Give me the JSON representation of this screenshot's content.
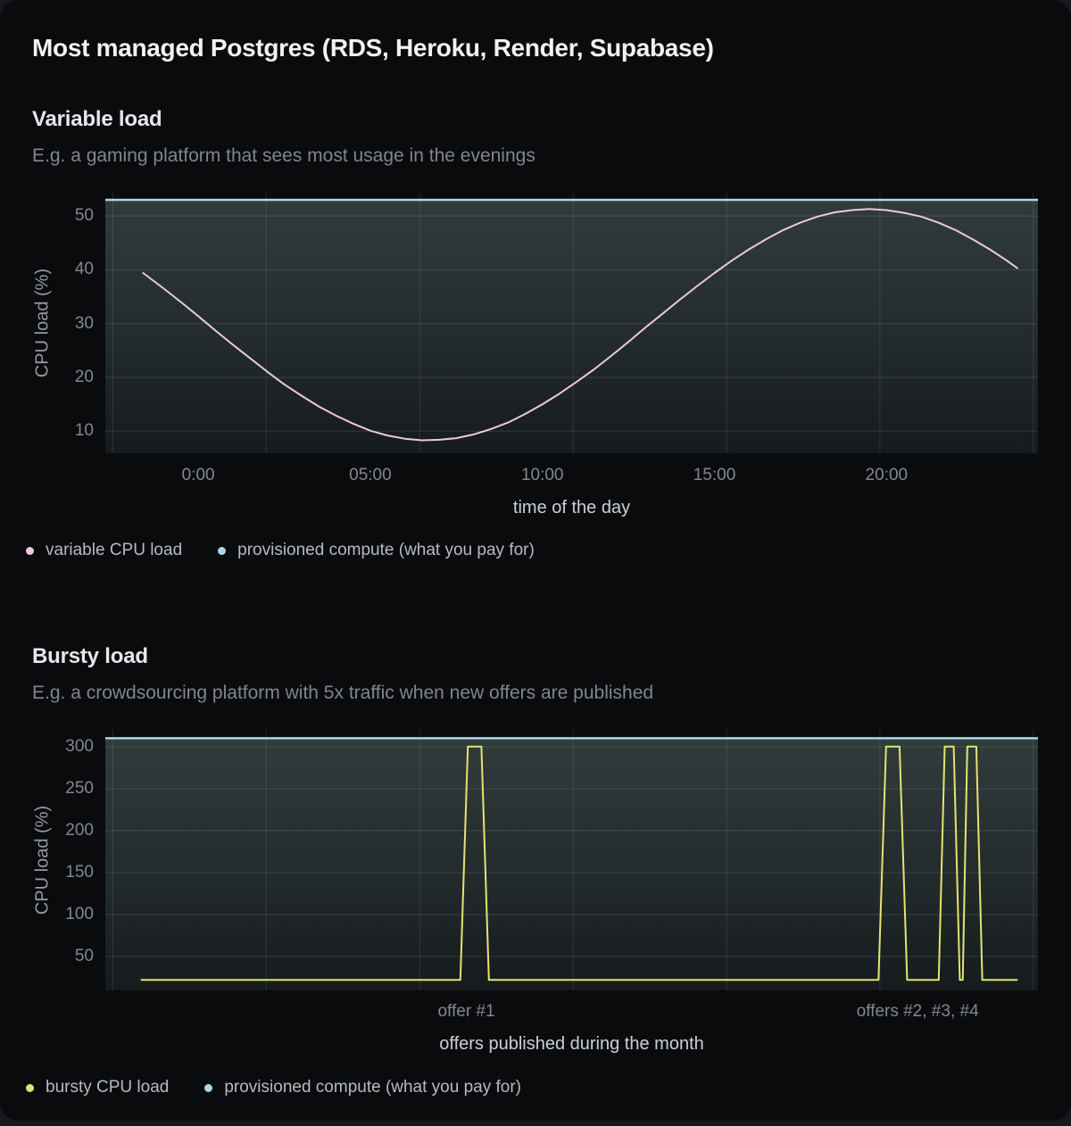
{
  "page": {
    "title": "Most managed Postgres (RDS, Heroku, Render, Supabase)",
    "background": "#171920",
    "card_background": "#0a0b0d"
  },
  "sections": [
    {
      "heading": "Variable load",
      "subtitle": "E.g. a gaming platform that sees most usage in the evenings"
    },
    {
      "heading": "Bursty load",
      "subtitle": "E.g. a crowdsourcing platform with 5x traffic when new offers are published"
    }
  ],
  "colors": {
    "variable_line": "#ecc9dc",
    "bursty_line": "#e6e273",
    "provisioned_line": "#a9d8e5",
    "grid_horizontal": "rgba(255,255,255,0.12)",
    "grid_vertical": "rgba(255,255,255,0.10)",
    "fill_top": "#303c3b",
    "fill_mid": "#232b2c",
    "fill_bottom": "#161b1d"
  },
  "chart_data": [
    {
      "type": "line",
      "section": "Variable load",
      "xlabel": "time of the day",
      "ylabel": "CPU load (%)",
      "xlim": [
        -2.7,
        24.4
      ],
      "ylim": [
        5.9,
        54.5
      ],
      "grid": true,
      "legend_position": "bottom-left",
      "x_ticks": [
        {
          "v": 0,
          "label": "0:00"
        },
        {
          "v": 5,
          "label": "05:00"
        },
        {
          "v": 10,
          "label": "10:00"
        },
        {
          "v": 15,
          "label": "15:00"
        },
        {
          "v": 20,
          "label": "20:00"
        }
      ],
      "y_ticks": [
        {
          "v": 10,
          "label": "10"
        },
        {
          "v": 20,
          "label": "20"
        },
        {
          "v": 30,
          "label": "30"
        },
        {
          "v": 40,
          "label": "40"
        },
        {
          "v": 50,
          "label": "50"
        }
      ],
      "series": [
        {
          "name": "variable CPU load",
          "kind": "line",
          "color": "#ecc9dc",
          "points": [
            [
              -1.6,
              39.4
            ],
            [
              -1,
              36.5
            ],
            [
              -0.5,
              34
            ],
            [
              0,
              31.4
            ],
            [
              0.5,
              28.7
            ],
            [
              1,
              26.1
            ],
            [
              1.5,
              23.6
            ],
            [
              2,
              21.1
            ],
            [
              2.5,
              18.7
            ],
            [
              3,
              16.6
            ],
            [
              3.5,
              14.6
            ],
            [
              4,
              12.9
            ],
            [
              4.5,
              11.4
            ],
            [
              5,
              10.1
            ],
            [
              5.5,
              9.2
            ],
            [
              6,
              8.6
            ],
            [
              6.5,
              8.3
            ],
            [
              7,
              8.4
            ],
            [
              7.5,
              8.7
            ],
            [
              8,
              9.4
            ],
            [
              8.5,
              10.4
            ],
            [
              9,
              11.6
            ],
            [
              9.5,
              13.2
            ],
            [
              10,
              15
            ],
            [
              10.5,
              17
            ],
            [
              11,
              19.2
            ],
            [
              11.5,
              21.5
            ],
            [
              12,
              24
            ],
            [
              12.5,
              26.6
            ],
            [
              13,
              29.3
            ],
            [
              13.5,
              31.9
            ],
            [
              14,
              34.5
            ],
            [
              14.5,
              37
            ],
            [
              15,
              39.4
            ],
            [
              15.5,
              41.7
            ],
            [
              16,
              43.8
            ],
            [
              16.5,
              45.7
            ],
            [
              17,
              47.4
            ],
            [
              17.5,
              48.8
            ],
            [
              18,
              49.9
            ],
            [
              18.5,
              50.7
            ],
            [
              19,
              51.1
            ],
            [
              19.5,
              51.3
            ],
            [
              20,
              51.1
            ],
            [
              20.5,
              50.6
            ],
            [
              21,
              49.9
            ],
            [
              21.5,
              48.8
            ],
            [
              22,
              47.4
            ],
            [
              22.5,
              45.7
            ],
            [
              23,
              43.8
            ],
            [
              23.5,
              41.7
            ],
            [
              23.8,
              40.3
            ]
          ]
        },
        {
          "name": "provisioned compute (what you pay for)",
          "kind": "hline",
          "color": "#a9d8e5",
          "value": 53,
          "area": true
        }
      ]
    },
    {
      "type": "line",
      "section": "Bursty load",
      "xlabel": "offers published during the month",
      "ylabel": "CPU load (%)",
      "xlim": [
        0,
        31
      ],
      "ylim": [
        9.6,
        320
      ],
      "grid": true,
      "legend_position": "bottom-left",
      "x_ticks": [
        {
          "v": 12,
          "label": "offer #1"
        },
        {
          "v": 27,
          "label": "offers #2, #3, #4"
        }
      ],
      "y_ticks": [
        {
          "v": 50,
          "label": "50"
        },
        {
          "v": 100,
          "label": "100"
        },
        {
          "v": 150,
          "label": "150"
        },
        {
          "v": 200,
          "label": "200"
        },
        {
          "v": 250,
          "label": "250"
        },
        {
          "v": 300,
          "label": "300"
        }
      ],
      "series": [
        {
          "name": "bursty CPU load",
          "kind": "line",
          "color": "#e6e273",
          "points": [
            [
              1.2,
              22
            ],
            [
              11.8,
              22
            ],
            [
              12.05,
              300
            ],
            [
              12.5,
              300
            ],
            [
              12.75,
              22
            ],
            [
              25.7,
              22
            ],
            [
              25.95,
              300
            ],
            [
              26.4,
              300
            ],
            [
              26.65,
              22
            ],
            [
              27.7,
              22
            ],
            [
              27.9,
              300
            ],
            [
              28.2,
              300
            ],
            [
              28.4,
              22
            ],
            [
              28.5,
              22
            ],
            [
              28.65,
              300
            ],
            [
              28.95,
              300
            ],
            [
              29.15,
              22
            ],
            [
              30.3,
              22
            ]
          ]
        },
        {
          "name": "provisioned compute (what you pay for)",
          "kind": "hline",
          "color": "#a9d8e5",
          "value": 310,
          "area": true
        }
      ]
    }
  ]
}
